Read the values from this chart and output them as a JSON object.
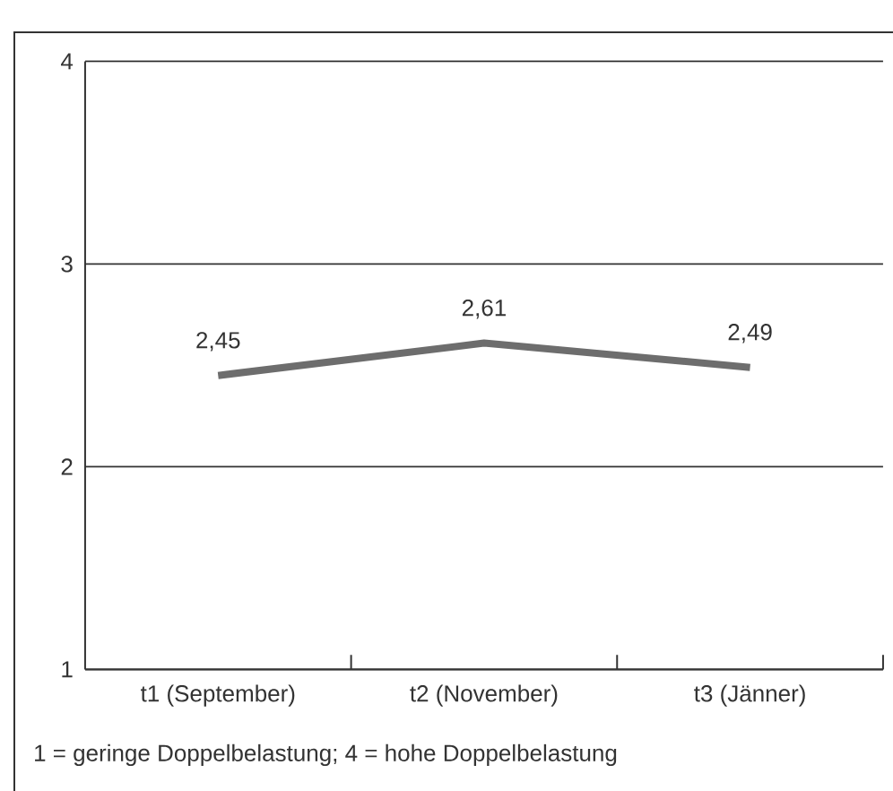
{
  "chart_data": {
    "type": "line",
    "categories": [
      "t1 (September)",
      "t2 (November)",
      "t3 (Jänner)"
    ],
    "values": [
      2.45,
      2.61,
      2.49
    ],
    "value_labels": [
      "2,45",
      "2,61",
      "2,49"
    ],
    "color": "#6d6d6d",
    "ylim": [
      1,
      4
    ],
    "yticks": [
      1,
      2,
      3,
      4
    ],
    "grid": "y",
    "marker": "none",
    "line_style": "solid",
    "annotations": [
      "1 = geringe Doppelbelastung; 4 = hohe Doppelbelastung"
    ]
  }
}
